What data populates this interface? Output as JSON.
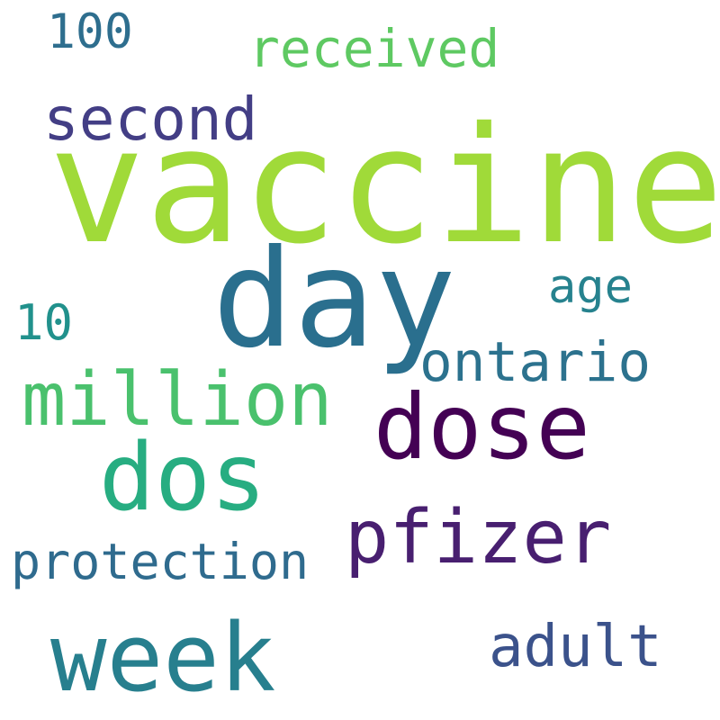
{
  "words": {
    "vaccine": {
      "text": "vaccine",
      "color": "#a0da39"
    },
    "day": {
      "text": "day",
      "color": "#2a6f8e"
    },
    "dose": {
      "text": "dose",
      "color": "#440154"
    },
    "dos": {
      "text": "dos",
      "color": "#27ad81"
    },
    "week": {
      "text": "week",
      "color": "#277f8e"
    },
    "pfizer": {
      "text": "pfizer",
      "color": "#481f70"
    },
    "million": {
      "text": "million",
      "color": "#4ac16d"
    },
    "second": {
      "text": "second",
      "color": "#433e85"
    },
    "adult": {
      "text": "adult",
      "color": "#3b528b"
    },
    "ontario": {
      "text": "ontario",
      "color": "#2c728e"
    },
    "protection": {
      "text": "protection",
      "color": "#2f6b8e"
    },
    "received": {
      "text": "received",
      "color": "#5ec962"
    },
    "age": {
      "text": "age",
      "color": "#26828e"
    },
    "n100": {
      "text": "100",
      "color": "#2e6e8e"
    },
    "n10": {
      "text": "10",
      "color": "#21918c"
    }
  }
}
